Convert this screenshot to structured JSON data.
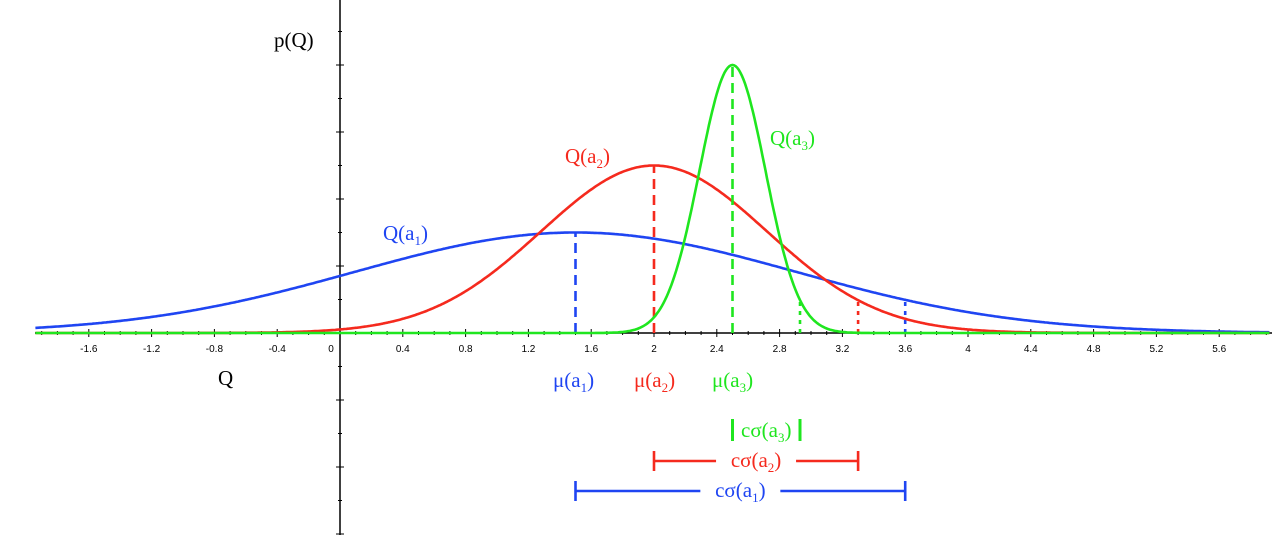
{
  "chart_data": {
    "type": "line",
    "ylabel": "p(Q)",
    "xlabel": "Q",
    "xlim": [
      -1.94,
      5.92
    ],
    "ylim": [
      -3,
      5
    ],
    "x_ticks": [
      "-1.6",
      "-1.2",
      "-0.8",
      "-0.4",
      "0",
      "0.4",
      "0.8",
      "1.2",
      "1.6",
      "2",
      "2.4",
      "2.8",
      "3.2",
      "3.6",
      "4",
      "4.4",
      "4.8",
      "5.2",
      "5.6"
    ],
    "grid": false,
    "series": [
      {
        "key": "a1",
        "name_parts": {
          "pre": "Q(a",
          "sub": "1",
          "post": ")"
        },
        "color": "#1f45f2",
        "mean": 1.5,
        "sigma": 1.41,
        "peak": 1.5,
        "c_sigma": 2.1,
        "mu_label": {
          "pre": "μ(a",
          "sub": "1",
          "post": ")"
        },
        "cs_label": {
          "pre": "cσ(a",
          "sub": "1",
          "post": ")"
        }
      },
      {
        "key": "a2",
        "name_parts": {
          "pre": "Q(a",
          "sub": "2",
          "post": ")"
        },
        "color": "#f52a1e",
        "mean": 2.0,
        "sigma": 0.72,
        "peak": 2.5,
        "c_sigma": 1.3,
        "mu_label": {
          "pre": "μ(a",
          "sub": "2",
          "post": ")"
        },
        "cs_label": {
          "pre": "cσ(a",
          "sub": "2",
          "post": ")"
        }
      },
      {
        "key": "a3",
        "name_parts": {
          "pre": "Q(a",
          "sub": "3",
          "post": ")"
        },
        "color": "#1fe61f",
        "mean": 2.5,
        "sigma": 0.21,
        "peak": 4.0,
        "c_sigma": 0.43,
        "mu_label": {
          "pre": "μ(a",
          "sub": "3",
          "post": ")"
        },
        "cs_label": {
          "pre": "cσ(a",
          "sub": "3",
          "post": ")"
        }
      }
    ]
  }
}
